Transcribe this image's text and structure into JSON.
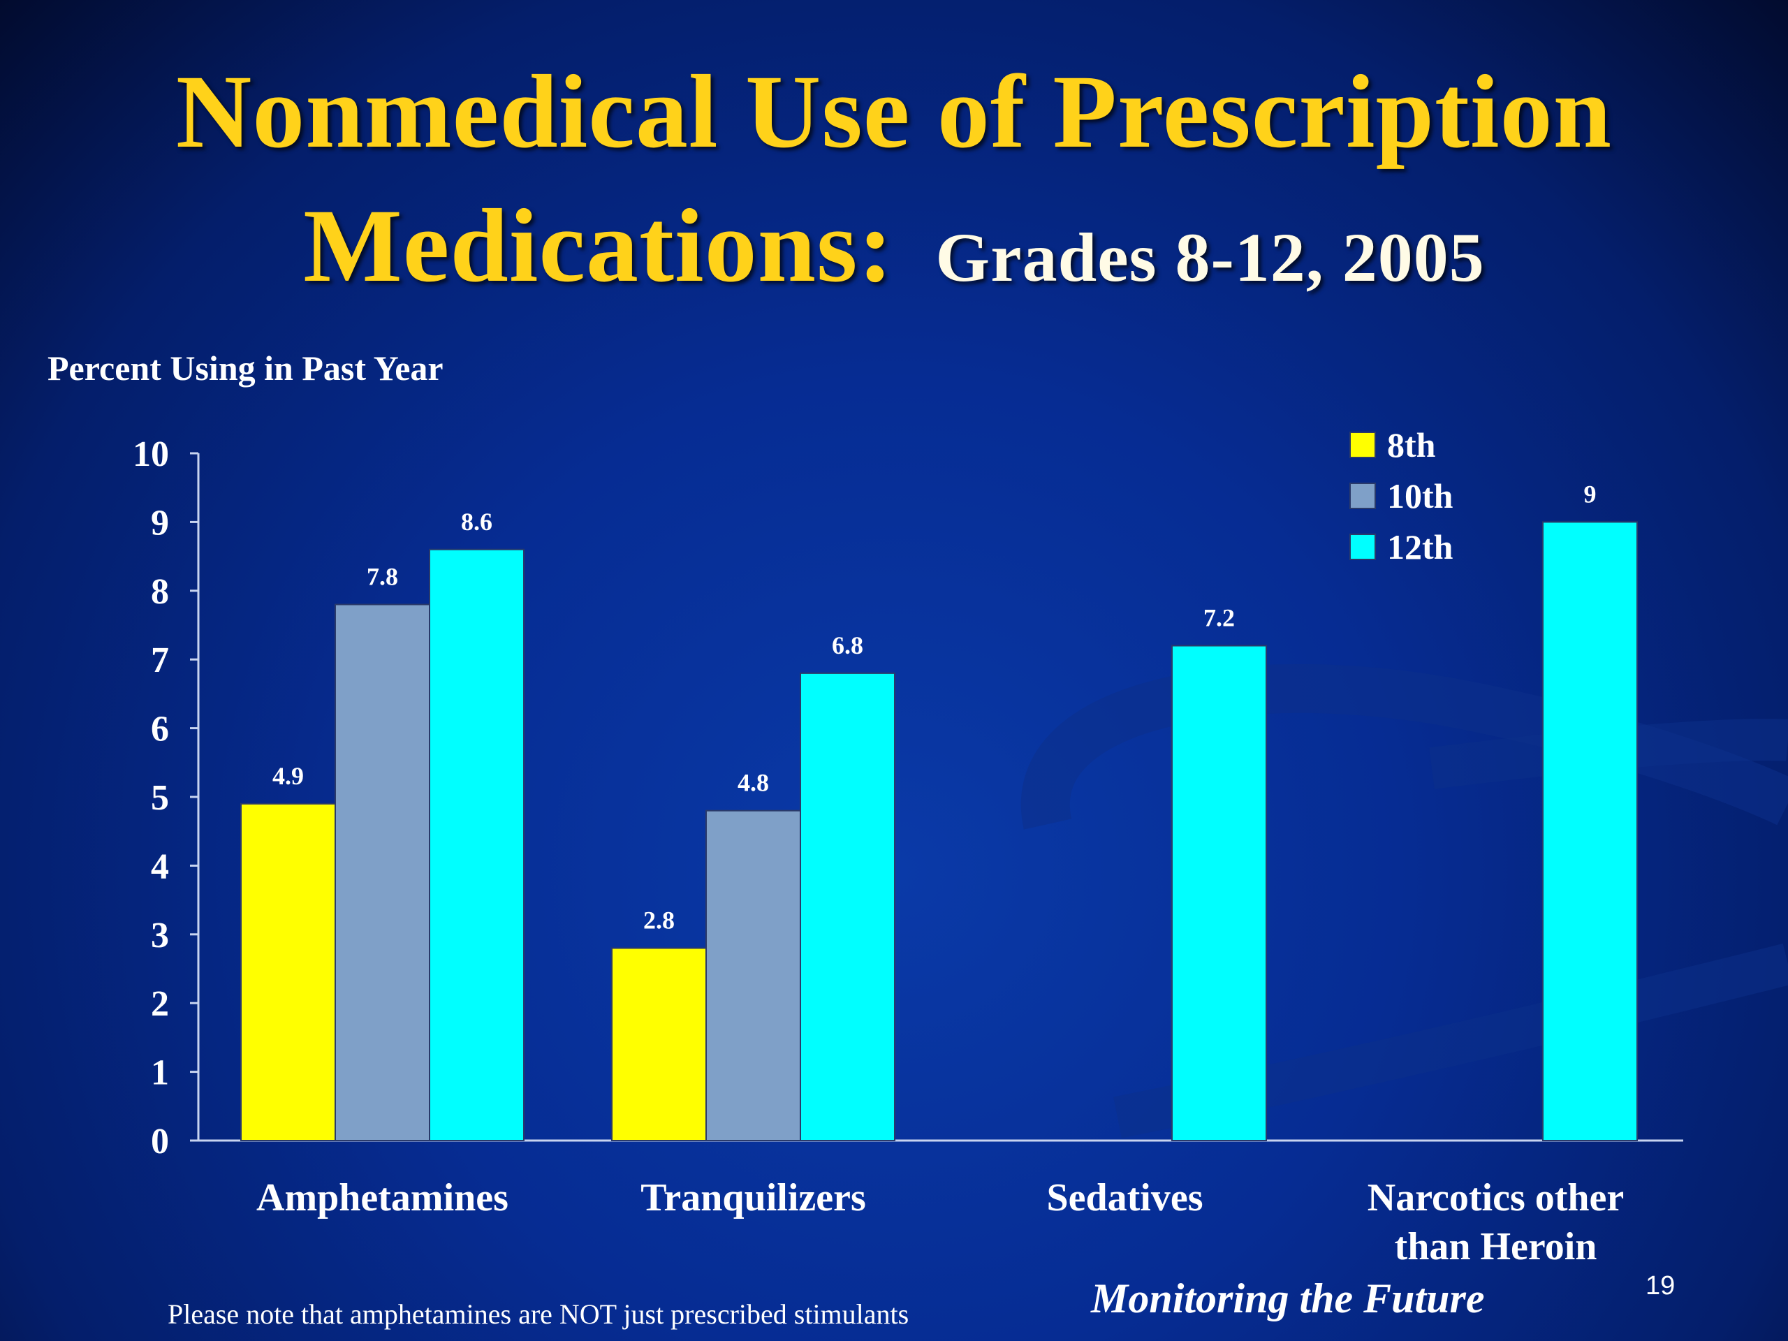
{
  "title": {
    "line1": "Nonmedical Use of  Prescription",
    "line2_main": "Medications:",
    "line2_sub": "Grades 8-12, 2005"
  },
  "footer": {
    "note": "Please note that amphetamines are NOT just prescribed stimulants",
    "source": "Monitoring the Future",
    "page_number": "19"
  },
  "chart_data": {
    "type": "bar",
    "ylabel": "Percent Using in Past Year",
    "xlabel": "",
    "ylim": [
      0,
      10
    ],
    "yticks": [
      0,
      1,
      2,
      3,
      4,
      5,
      6,
      7,
      8,
      9,
      10
    ],
    "grid": false,
    "legend_position": "top-right",
    "categories": [
      [
        "Amphetamines"
      ],
      [
        "Tranquilizers"
      ],
      [
        "Sedatives"
      ],
      [
        "Narcotics other",
        "than Heroin"
      ]
    ],
    "series": [
      {
        "name": "8th",
        "color": "#ffff00",
        "values": [
          4.9,
          2.8,
          null,
          null
        ],
        "labels": [
          "4.9",
          "2.8",
          null,
          null
        ]
      },
      {
        "name": "10th",
        "color": "#7fa0c8",
        "values": [
          7.8,
          4.8,
          null,
          null
        ],
        "labels": [
          "7.8",
          "4.8",
          null,
          null
        ]
      },
      {
        "name": "12th",
        "color": "#00ffff",
        "values": [
          8.6,
          6.8,
          7.2,
          9.0
        ],
        "labels": [
          "8.6",
          "6.8",
          "7.2",
          "9"
        ]
      }
    ]
  }
}
